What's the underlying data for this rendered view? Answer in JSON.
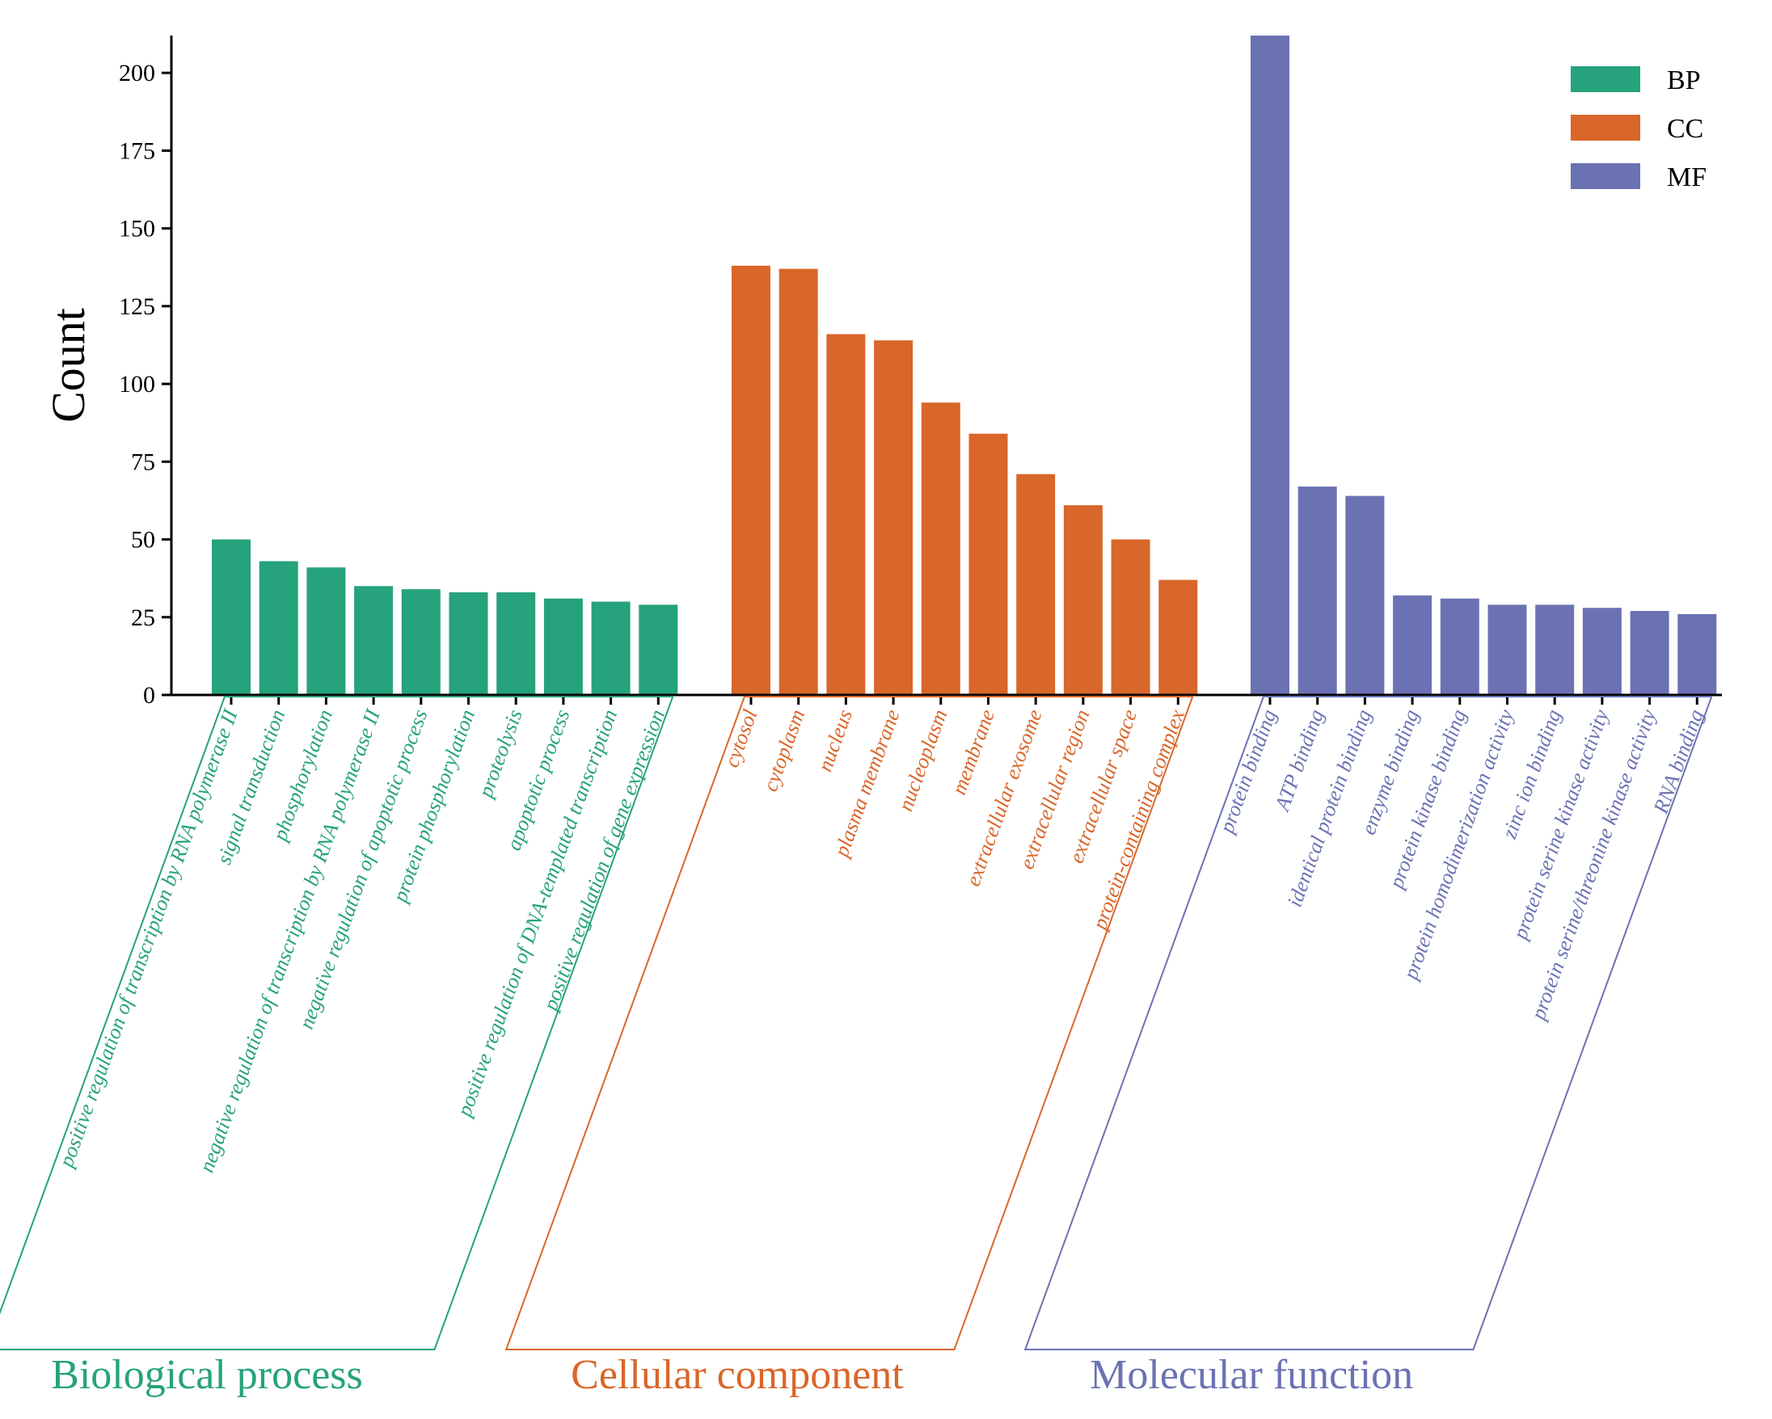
{
  "chart_data": {
    "type": "bar",
    "ylabel": "Count",
    "ylim": [
      0,
      212
    ],
    "yticks": [
      0,
      25,
      50,
      75,
      100,
      125,
      150,
      175,
      200
    ],
    "legend_position": "top-right",
    "grid": false,
    "groups": [
      {
        "key": "BP",
        "title": "Biological process",
        "color": "#26a27d",
        "categories": [
          "positive regulation of transcription by RNA polymerase II",
          "signal transduction",
          "phosphorylation",
          "negative regulation of transcription by RNA polymerase II",
          "negative regulation of apoptotic process",
          "protein phosphorylation",
          "proteolysis",
          "apoptotic process",
          "positive regulation of DNA-templated transcription",
          "positive regulation of  gene expression"
        ],
        "values": [
          50,
          43,
          41,
          35,
          34,
          33,
          33,
          31,
          30,
          29
        ]
      },
      {
        "key": "CC",
        "title": "Cellular component",
        "color": "#d9662a",
        "categories": [
          "cytosol",
          "cytoplasm",
          "nucleus",
          "plasma membrane",
          "nucleoplasm",
          "membrane",
          "extracellular exosome",
          "extracellular region",
          "extracellular space",
          "protein-containing complex"
        ],
        "values": [
          138,
          137,
          116,
          114,
          94,
          84,
          71,
          61,
          50,
          37
        ]
      },
      {
        "key": "MF",
        "title": "Molecular function",
        "color": "#6b72b3",
        "categories": [
          "protein binding",
          "ATP binding",
          "identical protein binding",
          "enzyme binding",
          "protein kinase binding",
          "protein homodimerization activity",
          "zinc ion binding",
          "protein serine kinase activity",
          "protein serine/threonine kinase activity",
          "RNA binding"
        ],
        "values": [
          212,
          67,
          64,
          32,
          31,
          29,
          29,
          28,
          27,
          26
        ]
      }
    ],
    "legend": [
      {
        "label": "BP",
        "color": "#26a27d"
      },
      {
        "label": "CC",
        "color": "#d9662a"
      },
      {
        "label": "MF",
        "color": "#6b72b3"
      }
    ]
  }
}
